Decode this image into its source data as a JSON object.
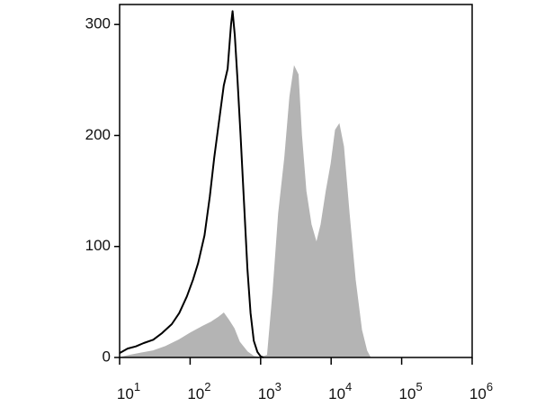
{
  "chart_data": {
    "type": "histogram-overlay",
    "xlim": [
      10,
      1000000
    ],
    "ylim": [
      0,
      318
    ],
    "xscale": "log",
    "xticks": [
      {
        "value": 10,
        "label": "10",
        "exponent": "1"
      },
      {
        "value": 100,
        "label": "10",
        "exponent": "2"
      },
      {
        "value": 1000,
        "label": "10",
        "exponent": "3"
      },
      {
        "value": 10000,
        "label": "10",
        "exponent": "4"
      },
      {
        "value": 100000,
        "label": "10",
        "exponent": "5"
      },
      {
        "value": 1000000,
        "label": "10",
        "exponent": "6"
      }
    ],
    "yticks": [
      0,
      100,
      200,
      300
    ],
    "series": [
      {
        "color": "#b4b4b4",
        "fill": true,
        "x": [
          10,
          14,
          20,
          30,
          45,
          70,
          100,
          150,
          200,
          250,
          300,
          350,
          420,
          500,
          650,
          800,
          1000,
          1250,
          1500,
          1800,
          2200,
          2600,
          3000,
          3400,
          3800,
          4400,
          5200,
          6200,
          7200,
          8500,
          10000,
          11500,
          13000,
          15000,
          18000,
          22000,
          27000,
          32000,
          36000
        ],
        "values": [
          0,
          2,
          4,
          6,
          10,
          16,
          22,
          28,
          32,
          36,
          40,
          34,
          26,
          14,
          5,
          1,
          0,
          2,
          60,
          130,
          180,
          235,
          262,
          255,
          200,
          150,
          120,
          103,
          120,
          150,
          175,
          205,
          210,
          190,
          130,
          70,
          25,
          6,
          0
        ]
      },
      {
        "color": "#000000",
        "fill": false,
        "x": [
          10,
          13,
          17,
          22,
          30,
          40,
          55,
          70,
          90,
          110,
          130,
          160,
          190,
          220,
          260,
          300,
          340,
          380,
          400,
          430,
          470,
          520,
          580,
          650,
          720,
          800,
          900,
          1000,
          1100
        ],
        "values": [
          4,
          8,
          10,
          13,
          16,
          22,
          30,
          40,
          55,
          70,
          85,
          110,
          145,
          180,
          215,
          245,
          260,
          300,
          312,
          290,
          250,
          200,
          140,
          80,
          40,
          15,
          5,
          1,
          0
        ]
      }
    ]
  }
}
